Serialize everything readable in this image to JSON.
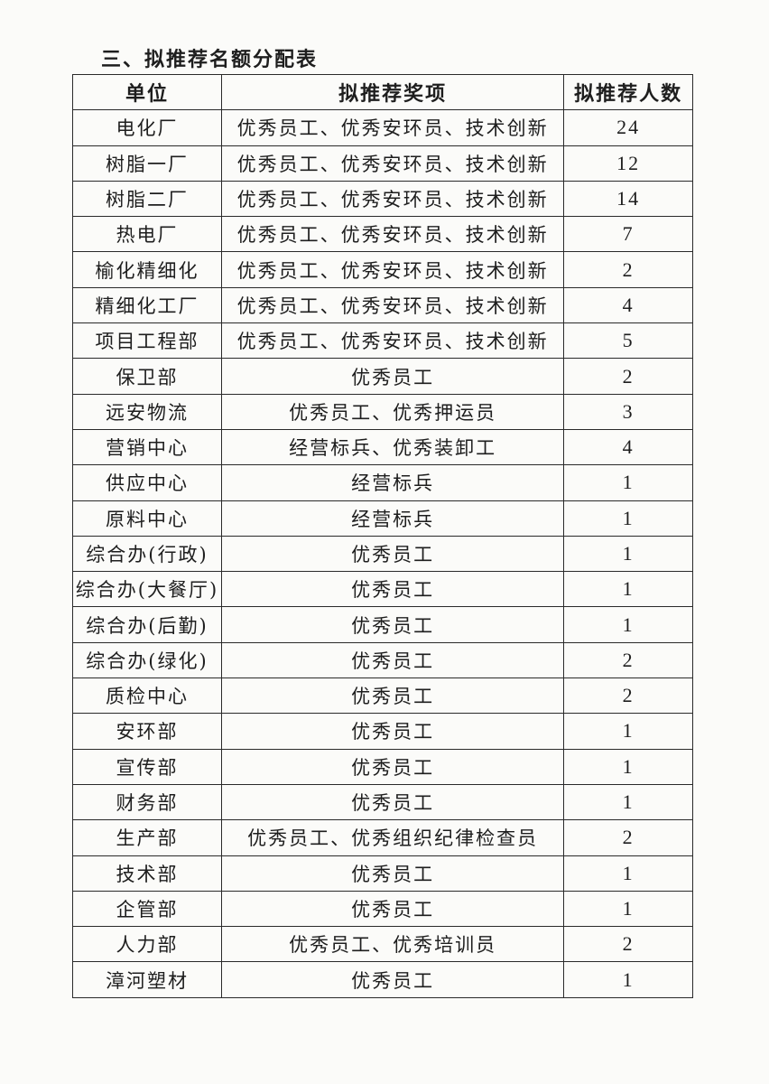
{
  "title": "三、拟推荐名额分配表",
  "table": {
    "headers": [
      "单位",
      "拟推荐奖项",
      "拟推荐人数"
    ],
    "rows": [
      [
        "电化厂",
        "优秀员工、优秀安环员、技术创新",
        "24"
      ],
      [
        "树脂一厂",
        "优秀员工、优秀安环员、技术创新",
        "12"
      ],
      [
        "树脂二厂",
        "优秀员工、优秀安环员、技术创新",
        "14"
      ],
      [
        "热电厂",
        "优秀员工、优秀安环员、技术创新",
        "7"
      ],
      [
        "榆化精细化",
        "优秀员工、优秀安环员、技术创新",
        "2"
      ],
      [
        "精细化工厂",
        "优秀员工、优秀安环员、技术创新",
        "4"
      ],
      [
        "项目工程部",
        "优秀员工、优秀安环员、技术创新",
        "5"
      ],
      [
        "保卫部",
        "优秀员工",
        "2"
      ],
      [
        "远安物流",
        "优秀员工、优秀押运员",
        "3"
      ],
      [
        "营销中心",
        "经营标兵、优秀装卸工",
        "4"
      ],
      [
        "供应中心",
        "经营标兵",
        "1"
      ],
      [
        "原料中心",
        "经营标兵",
        "1"
      ],
      [
        "综合办(行政)",
        "优秀员工",
        "1"
      ],
      [
        "综合办(大餐厅)",
        "优秀员工",
        "1"
      ],
      [
        "综合办(后勤)",
        "优秀员工",
        "1"
      ],
      [
        "综合办(绿化)",
        "优秀员工",
        "2"
      ],
      [
        "质检中心",
        "优秀员工",
        "2"
      ],
      [
        "安环部",
        "优秀员工",
        "1"
      ],
      [
        "宣传部",
        "优秀员工",
        "1"
      ],
      [
        "财务部",
        "优秀员工",
        "1"
      ],
      [
        "生产部",
        "优秀员工、优秀组织纪律检查员",
        "2"
      ],
      [
        "技术部",
        "优秀员工",
        "1"
      ],
      [
        "企管部",
        "优秀员工",
        "1"
      ],
      [
        "人力部",
        "优秀员工、优秀培训员",
        "2"
      ],
      [
        "漳河塑材",
        "优秀员工",
        "1"
      ]
    ]
  }
}
